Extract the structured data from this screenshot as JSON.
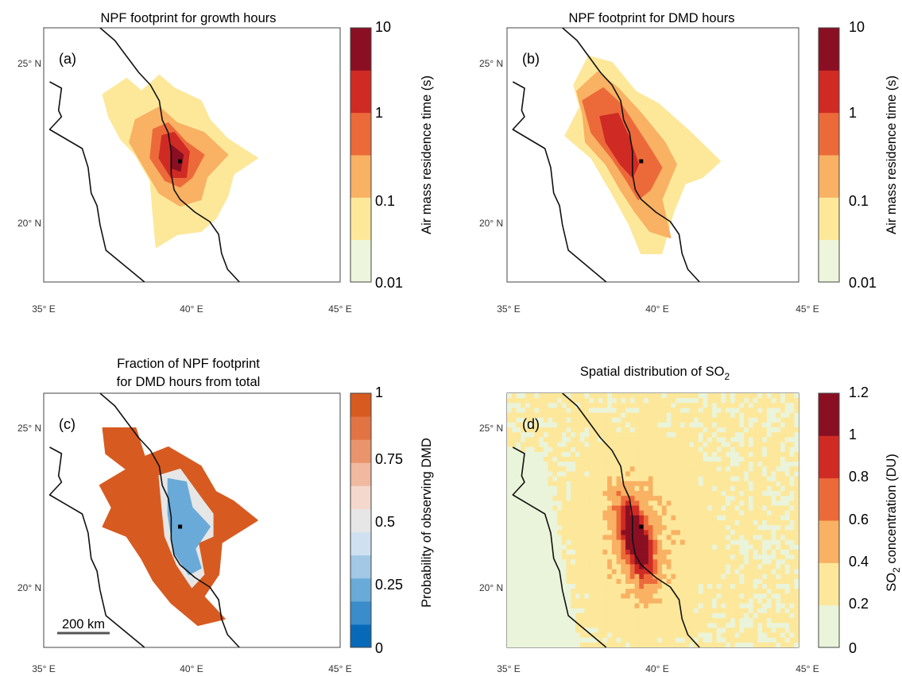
{
  "chart_data": [
    {
      "type": "heatmap",
      "panel": "(a)",
      "title": "NPF footprint for growth hours",
      "xticks": [
        "35° E",
        "40° E",
        "45° E"
      ],
      "yticks": [
        "25° N",
        "20° N"
      ],
      "xlim": [
        35,
        45
      ],
      "ylim": [
        18,
        26
      ],
      "site": {
        "lon": 39.6,
        "lat": 21.8
      },
      "colorbar": {
        "title": "Air mass residence time (s)",
        "scale": "log",
        "ticks": [
          "10",
          "1",
          "0.1",
          "0.01"
        ],
        "colors": [
          "#edf6dc",
          "#fde89a",
          "#f9b163",
          "#ec6a3a",
          "#cf2b24",
          "#8a0f23"
        ]
      },
      "levels": [
        {
          "level": 1,
          "polygon": [
            [
              37.0,
              23.9
            ],
            [
              37.8,
              24.4
            ],
            [
              38.3,
              24.0
            ],
            [
              38.9,
              24.5
            ],
            [
              39.4,
              24.1
            ],
            [
              40.3,
              23.7
            ],
            [
              40.6,
              23.1
            ],
            [
              41.2,
              22.5
            ],
            [
              42.2,
              21.9
            ],
            [
              41.4,
              21.4
            ],
            [
              41.2,
              20.7
            ],
            [
              40.8,
              20.0
            ],
            [
              40.3,
              19.6
            ],
            [
              39.5,
              19.5
            ],
            [
              38.8,
              19.1
            ],
            [
              38.7,
              20.1
            ],
            [
              38.6,
              21.2
            ],
            [
              38.1,
              22.0
            ],
            [
              37.6,
              22.5
            ],
            [
              37.2,
              23.2
            ]
          ]
        },
        {
          "level": 2,
          "polygon": [
            [
              38.1,
              23.1
            ],
            [
              38.9,
              23.5
            ],
            [
              39.5,
              23.0
            ],
            [
              40.4,
              22.7
            ],
            [
              41.2,
              22.0
            ],
            [
              40.5,
              21.3
            ],
            [
              40.3,
              20.6
            ],
            [
              39.6,
              20.4
            ],
            [
              38.9,
              20.8
            ],
            [
              38.4,
              21.6
            ],
            [
              37.9,
              22.4
            ]
          ]
        },
        {
          "level": 3,
          "polygon": [
            [
              38.7,
              22.8
            ],
            [
              39.2,
              23.0
            ],
            [
              39.8,
              22.4
            ],
            [
              40.4,
              22.0
            ],
            [
              40.0,
              21.3
            ],
            [
              39.6,
              21.0
            ],
            [
              39.1,
              21.2
            ],
            [
              38.6,
              21.9
            ]
          ]
        },
        {
          "level": 4,
          "polygon": [
            [
              39.0,
              22.6
            ],
            [
              39.4,
              22.7
            ],
            [
              39.9,
              22.1
            ],
            [
              39.8,
              21.3
            ],
            [
              39.3,
              21.3
            ],
            [
              38.9,
              21.9
            ]
          ]
        },
        {
          "level": 5,
          "polygon": [
            [
              39.3,
              22.3
            ],
            [
              39.7,
              22.0
            ],
            [
              39.6,
              21.5
            ],
            [
              39.3,
              21.6
            ]
          ]
        }
      ]
    },
    {
      "type": "heatmap",
      "panel": "(b)",
      "title": "NPF footprint for DMD hours",
      "xticks": [
        "35° E",
        "40° E",
        "45° E"
      ],
      "yticks": [
        "25° N",
        "20° N"
      ],
      "xlim": [
        35,
        45
      ],
      "ylim": [
        18,
        26
      ],
      "site": {
        "lon": 39.6,
        "lat": 21.8
      },
      "colorbar": {
        "title": "Air mass residence time (s)",
        "scale": "log",
        "ticks": [
          "10",
          "1",
          "0.1",
          "0.01"
        ],
        "colors": [
          "#edf6dc",
          "#fde89a",
          "#f9b163",
          "#ec6a3a",
          "#cf2b24",
          "#8a0f23"
        ]
      },
      "levels": [
        {
          "level": 1,
          "polygon": [
            [
              37.3,
              24.2
            ],
            [
              37.8,
              25.1
            ],
            [
              38.6,
              24.9
            ],
            [
              39.4,
              24.0
            ],
            [
              40.2,
              23.6
            ],
            [
              41.3,
              22.7
            ],
            [
              42.3,
              21.8
            ],
            [
              41.7,
              21.3
            ],
            [
              41.1,
              21.1
            ],
            [
              40.7,
              20.2
            ],
            [
              40.3,
              18.9
            ],
            [
              39.6,
              18.9
            ],
            [
              39.2,
              19.8
            ],
            [
              38.6,
              20.8
            ],
            [
              37.9,
              21.9
            ],
            [
              37.0,
              22.6
            ],
            [
              37.5,
              23.5
            ]
          ]
        },
        {
          "level": 2,
          "polygon": [
            [
              37.4,
              24.0
            ],
            [
              38.1,
              24.6
            ],
            [
              38.8,
              24.1
            ],
            [
              39.6,
              23.3
            ],
            [
              40.4,
              22.4
            ],
            [
              40.8,
              21.7
            ],
            [
              40.3,
              20.6
            ],
            [
              40.6,
              19.4
            ],
            [
              39.9,
              19.6
            ],
            [
              39.4,
              20.2
            ],
            [
              38.9,
              20.9
            ],
            [
              38.4,
              21.7
            ],
            [
              37.7,
              22.4
            ],
            [
              37.6,
              23.3
            ]
          ]
        },
        {
          "level": 3,
          "polygon": [
            [
              37.6,
              23.7
            ],
            [
              38.3,
              24.1
            ],
            [
              38.9,
              23.6
            ],
            [
              39.4,
              22.9
            ],
            [
              39.9,
              22.2
            ],
            [
              40.3,
              21.6
            ],
            [
              39.9,
              20.9
            ],
            [
              39.5,
              20.6
            ],
            [
              39.1,
              21.2
            ],
            [
              38.6,
              21.9
            ],
            [
              37.9,
              22.7
            ]
          ]
        },
        {
          "level": 4,
          "polygon": [
            [
              38.2,
              23.2
            ],
            [
              38.8,
              23.3
            ],
            [
              39.2,
              22.5
            ],
            [
              39.5,
              21.7
            ],
            [
              39.3,
              21.3
            ],
            [
              38.9,
              21.7
            ],
            [
              38.4,
              22.4
            ]
          ]
        }
      ]
    },
    {
      "type": "heatmap",
      "panel": "(c)",
      "title": "Fraction of NPF footprint\nfor DMD hours from total",
      "title_lines": [
        "Fraction of NPF footprint",
        "for DMD hours from total"
      ],
      "xticks": [
        "35° E",
        "40° E",
        "45° E"
      ],
      "yticks": [
        "25° N",
        "20° N"
      ],
      "xlim": [
        35,
        45
      ],
      "ylim": [
        18,
        26
      ],
      "site": {
        "lon": 39.6,
        "lat": 21.8
      },
      "scalebar": "200 km",
      "colorbar": {
        "title": "Probability of observing DMD",
        "ticks": [
          "1",
          "0.75",
          "0.5",
          "0.25",
          "0"
        ],
        "colors": [
          "#0869b9",
          "#3a8ccb",
          "#6aaad8",
          "#a2c8e6",
          "#cfe1f0",
          "#e6e6e6",
          "#f5d8cd",
          "#f0b9a0",
          "#e9946d",
          "#e27444",
          "#d75b20"
        ]
      },
      "levels": [
        {
          "level": 10,
          "polygon": [
            [
              37.0,
              24.9
            ],
            [
              38.1,
              24.9
            ],
            [
              38.4,
              24.0
            ],
            [
              39.2,
              24.3
            ],
            [
              40.3,
              23.7
            ],
            [
              40.8,
              22.9
            ],
            [
              41.4,
              22.6
            ],
            [
              42.2,
              22.0
            ],
            [
              41.0,
              21.3
            ],
            [
              40.9,
              20.3
            ],
            [
              40.4,
              19.6
            ],
            [
              41.1,
              18.9
            ],
            [
              40.2,
              18.7
            ],
            [
              39.3,
              19.4
            ],
            [
              38.7,
              20.1
            ],
            [
              38.3,
              20.8
            ],
            [
              37.8,
              21.5
            ],
            [
              37.0,
              21.8
            ],
            [
              37.3,
              22.4
            ],
            [
              36.9,
              23.1
            ],
            [
              37.8,
              23.6
            ],
            [
              37.1,
              24.1
            ]
          ]
        },
        {
          "level": 5,
          "polygon": [
            [
              38.9,
              23.4
            ],
            [
              39.6,
              23.6
            ],
            [
              40.3,
              22.7
            ],
            [
              40.7,
              22.2
            ],
            [
              40.7,
              21.5
            ],
            [
              40.2,
              21.3
            ],
            [
              40.4,
              20.3
            ],
            [
              40.0,
              19.9
            ],
            [
              39.5,
              20.6
            ],
            [
              39.1,
              21.5
            ],
            [
              39.0,
              22.4
            ]
          ]
        },
        {
          "level": 2,
          "polygon": [
            [
              39.2,
              23.3
            ],
            [
              39.8,
              23.2
            ],
            [
              40.0,
              22.4
            ],
            [
              40.6,
              21.8
            ],
            [
              40.1,
              21.1
            ],
            [
              40.3,
              20.5
            ],
            [
              39.9,
              20.3
            ],
            [
              39.4,
              21.0
            ],
            [
              39.2,
              22.2
            ]
          ]
        }
      ]
    },
    {
      "type": "heatmap",
      "panel": "(d)",
      "title": "Spatial distribution of SO2",
      "xticks": [
        "35° E",
        "40° E",
        "45° E"
      ],
      "yticks": [
        "25° N",
        "20° N"
      ],
      "xlim": [
        35,
        45
      ],
      "ylim": [
        18,
        26
      ],
      "site": {
        "lon": 39.6,
        "lat": 21.8
      },
      "colorbar": {
        "title": "SO2 concentration (DU)",
        "ticks": [
          "1.2",
          "1",
          "0.8",
          "0.6",
          "0.4",
          "0.2",
          "0"
        ],
        "colors": [
          "#eaf4da",
          "#fde79a",
          "#f9b163",
          "#ec6a3a",
          "#cf2b24",
          "#8a0f23"
        ]
      },
      "field": {
        "background_low": 0.2,
        "background_high": 0.35,
        "max_near_site": 1.1
      }
    }
  ],
  "coast_lines": [
    [
      [
        35.2,
        24.3
      ],
      [
        35.6,
        24.1
      ],
      [
        35.5,
        23.4
      ],
      [
        35.6,
        23.2
      ],
      [
        35.2,
        22.8
      ],
      [
        36.3,
        22.2
      ],
      [
        36.5,
        21.6
      ],
      [
        36.6,
        20.8
      ],
      [
        36.8,
        20.4
      ],
      [
        36.9,
        19.8
      ],
      [
        37.1,
        19.0
      ],
      [
        38.4,
        18.0
      ]
    ],
    [
      [
        36.9,
        26.0
      ],
      [
        37.4,
        25.6
      ],
      [
        37.8,
        25.1
      ],
      [
        38.2,
        24.6
      ],
      [
        38.6,
        24.2
      ],
      [
        38.9,
        23.7
      ],
      [
        39.0,
        23.1
      ],
      [
        39.2,
        22.7
      ],
      [
        39.3,
        22.1
      ],
      [
        39.3,
        21.4
      ],
      [
        39.4,
        20.9
      ],
      [
        39.6,
        20.6
      ],
      [
        40.1,
        20.2
      ],
      [
        40.6,
        19.9
      ],
      [
        40.9,
        19.5
      ],
      [
        41.0,
        18.9
      ],
      [
        41.2,
        18.4
      ],
      [
        41.6,
        18.0
      ]
    ]
  ]
}
